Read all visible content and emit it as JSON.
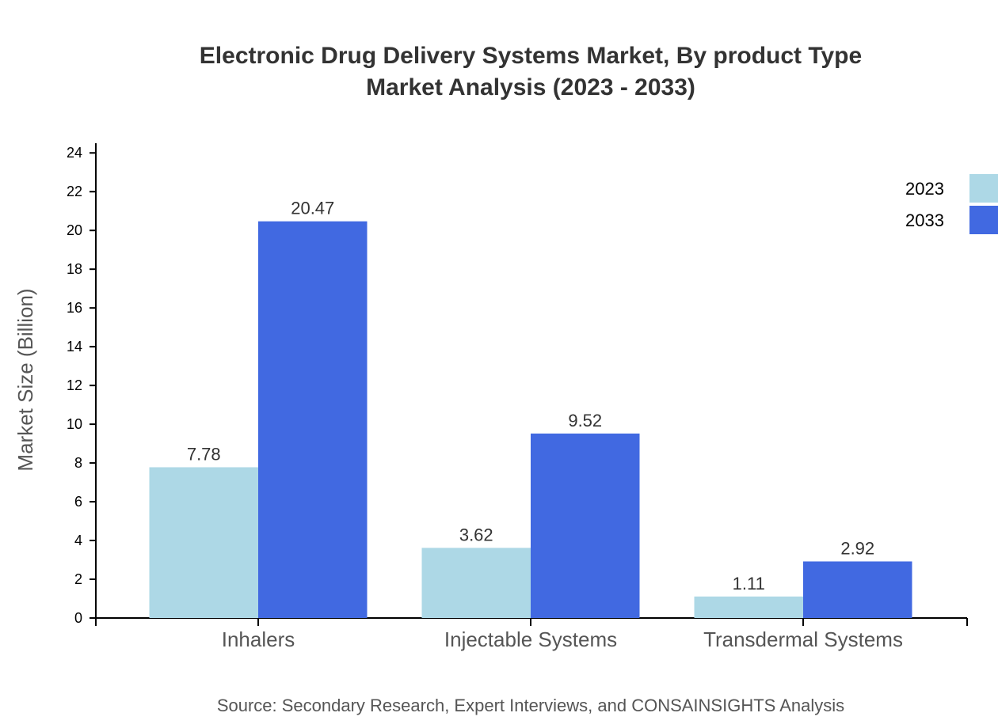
{
  "chart_data": {
    "type": "bar",
    "title": [
      "Electronic Drug Delivery Systems Market, By product Type",
      "Market Analysis (2023 - 2033)"
    ],
    "ylabel": "Market Size (Billion)",
    "xlabel": "",
    "ylim": [
      0,
      24.5
    ],
    "yticks": [
      0,
      2,
      4,
      6,
      8,
      10,
      12,
      14,
      16,
      18,
      20,
      22,
      24
    ],
    "categories": [
      "Inhalers",
      "Injectable Systems",
      "Transdermal Systems"
    ],
    "series": [
      {
        "name": "2023",
        "color": "#add8e6",
        "values": [
          7.78,
          3.62,
          1.11
        ]
      },
      {
        "name": "2033",
        "color": "#4169e1",
        "values": [
          20.47,
          9.52,
          2.92
        ]
      }
    ],
    "legend_position": "top-right",
    "grid": false,
    "source": "Source: Secondary Research, Expert Interviews, and CONSAINSIGHTS Analysis"
  }
}
